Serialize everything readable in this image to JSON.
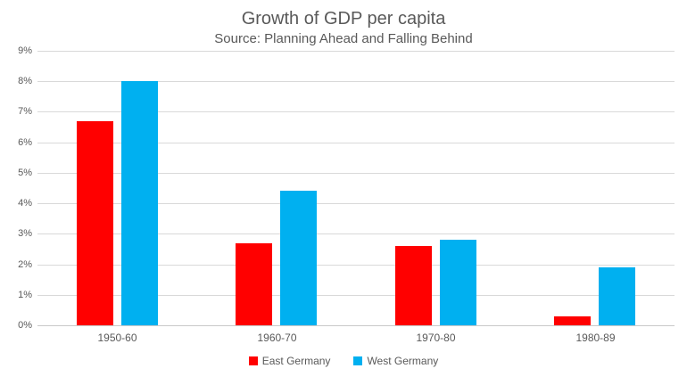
{
  "chart_data": {
    "type": "bar",
    "title": "Growth of GDP per capita",
    "subtitle": "Source: Planning Ahead and Falling Behind",
    "xlabel": "",
    "ylabel": "",
    "categories": [
      "1950-60",
      "1960-70",
      "1970-80",
      "1980-89"
    ],
    "series": [
      {
        "name": "East Germany",
        "color": "#ff0000",
        "values": [
          6.7,
          2.7,
          2.6,
          0.3
        ]
      },
      {
        "name": "West Germany",
        "color": "#00b0f0",
        "values": [
          8.0,
          4.4,
          2.8,
          1.9
        ]
      }
    ],
    "ylim": [
      0,
      9
    ],
    "ytick_step": 1,
    "ytick_labels": [
      "0%",
      "1%",
      "2%",
      "3%",
      "4%",
      "5%",
      "6%",
      "7%",
      "8%",
      "9%"
    ],
    "grid": true,
    "legend_position": "bottom"
  },
  "colors": {
    "background": "#ffffff",
    "title_text": "#595959",
    "axis_text": "#595959",
    "gridline": "#d9d9d9",
    "axis_line": "#c9c9c9",
    "east_germany": "#ff0000",
    "west_germany": "#00b0f0"
  }
}
